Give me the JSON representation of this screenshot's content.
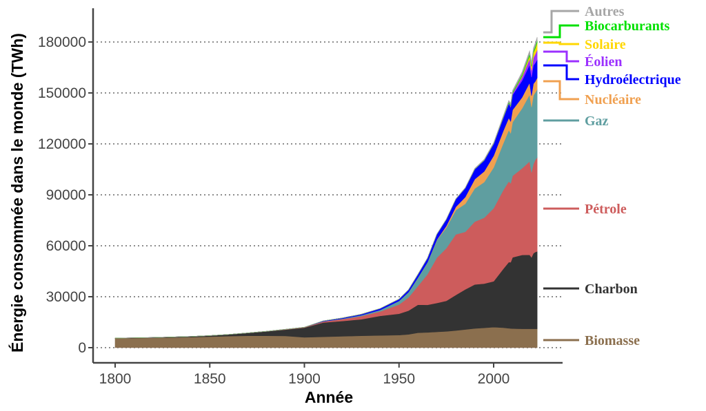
{
  "chart_data": {
    "type": "area",
    "stacked": true,
    "xlabel": "Année",
    "ylabel": "Énergie consommée dans le monde (TWh)",
    "xlim": [
      1800,
      2023
    ],
    "ylim": [
      0,
      190000
    ],
    "xticks": [
      1800,
      1850,
      1900,
      1950,
      2000
    ],
    "yticks": [
      0,
      30000,
      60000,
      90000,
      120000,
      150000,
      180000
    ],
    "grid": "horizontal dotted",
    "legend": "right, labels at series ends",
    "x": [
      1800,
      1820,
      1840,
      1850,
      1860,
      1870,
      1880,
      1890,
      1900,
      1910,
      1920,
      1930,
      1940,
      1950,
      1955,
      1960,
      1965,
      1970,
      1975,
      1980,
      1985,
      1990,
      1995,
      2000,
      2005,
      2008,
      2009,
      2010,
      2015,
      2019,
      2020,
      2021,
      2022,
      2023
    ],
    "series": [
      {
        "name": "Biomasse",
        "color": "#8b6f4e",
        "values": [
          5560,
          5800,
          6200,
          6500,
          6800,
          7000,
          7000,
          6900,
          6100,
          6400,
          6700,
          7000,
          7200,
          7400,
          7800,
          8800,
          9000,
          9300,
          9600,
          10100,
          10700,
          11300,
          11700,
          12100,
          11800,
          11400,
          11300,
          11200,
          11100,
          11100,
          11100,
          11100,
          11100,
          11100
        ]
      },
      {
        "name": "Charbon",
        "color": "#333333",
        "values": [
          100,
          200,
          400,
          600,
          1000,
          1700,
          2600,
          3700,
          5700,
          8400,
          9000,
          9700,
          11500,
          12600,
          14000,
          16500,
          16200,
          17000,
          18000,
          20900,
          23600,
          25900,
          26000,
          27000,
          34500,
          39000,
          39000,
          42000,
          43500,
          43600,
          42100,
          44500,
          45200,
          45600
        ]
      },
      {
        "name": "Pétrole",
        "color": "#cd5c5c",
        "values": [
          0,
          0,
          0,
          0,
          0,
          10,
          50,
          150,
          200,
          550,
          1100,
          1800,
          2600,
          5400,
          7800,
          11000,
          18000,
          26700,
          31000,
          35700,
          33900,
          37000,
          38800,
          43000,
          46300,
          47500,
          46500,
          48000,
          51000,
          55000,
          50000,
          52500,
          54300,
          55300
        ]
      },
      {
        "name": "Gaz",
        "color": "#5f9ea0",
        "values": [
          0,
          0,
          0,
          0,
          0,
          0,
          0,
          70,
          60,
          150,
          250,
          550,
          850,
          2100,
          3100,
          5000,
          7000,
          10400,
          12100,
          14300,
          16500,
          19500,
          21000,
          24000,
          27500,
          30200,
          29500,
          31600,
          35300,
          39300,
          38500,
          40400,
          39700,
          40100
        ]
      },
      {
        "name": "Nucléaire",
        "color": "#f0a050",
        "values": [
          0,
          0,
          0,
          0,
          0,
          0,
          0,
          0,
          0,
          0,
          0,
          0,
          0,
          0,
          0,
          10,
          70,
          220,
          1000,
          1900,
          4000,
          5500,
          6300,
          6900,
          7300,
          7200,
          7000,
          7200,
          6500,
          7000,
          6700,
          6900,
          6500,
          6800
        ]
      },
      {
        "name": "Hydroélectrique",
        "color": "#0000ff",
        "values": [
          0,
          0,
          0,
          0,
          0,
          0,
          0,
          0,
          0,
          300,
          450,
          650,
          900,
          1100,
          1400,
          1900,
          2400,
          3200,
          3900,
          4600,
          5300,
          5900,
          6500,
          7000,
          7600,
          8300,
          8300,
          8800,
          9800,
          10600,
          10900,
          10800,
          10900,
          10700
        ]
      },
      {
        "name": "Éolien",
        "color": "#9b30ff",
        "values": [
          0,
          0,
          0,
          0,
          0,
          0,
          0,
          0,
          0,
          0,
          0,
          0,
          0,
          0,
          0,
          0,
          0,
          0,
          0,
          0,
          0,
          10,
          20,
          80,
          250,
          550,
          700,
          900,
          2200,
          3600,
          4000,
          4600,
          5200,
          5700
        ]
      },
      {
        "name": "Solaire",
        "color": "#ffd700",
        "values": [
          0,
          0,
          0,
          0,
          0,
          0,
          0,
          0,
          0,
          0,
          0,
          0,
          0,
          0,
          0,
          0,
          0,
          0,
          0,
          0,
          0,
          0,
          0,
          0,
          10,
          30,
          50,
          90,
          650,
          1800,
          2200,
          2700,
          3400,
          4400
        ]
      },
      {
        "name": "Biocarburants",
        "color": "#00e000",
        "values": [
          0,
          0,
          0,
          0,
          0,
          0,
          0,
          0,
          0,
          0,
          0,
          0,
          0,
          0,
          0,
          0,
          0,
          0,
          0,
          0,
          0,
          100,
          100,
          110,
          230,
          530,
          590,
          670,
          850,
          1100,
          1000,
          1100,
          1200,
          1300
        ]
      },
      {
        "name": "Autres",
        "color": "#a6a6a6",
        "values": [
          0,
          0,
          0,
          0,
          0,
          0,
          0,
          0,
          0,
          0,
          0,
          0,
          0,
          0,
          0,
          0,
          100,
          130,
          160,
          200,
          300,
          400,
          500,
          600,
          800,
          900,
          950,
          1000,
          1400,
          1700,
          1700,
          1800,
          1900,
          1900
        ]
      }
    ]
  }
}
